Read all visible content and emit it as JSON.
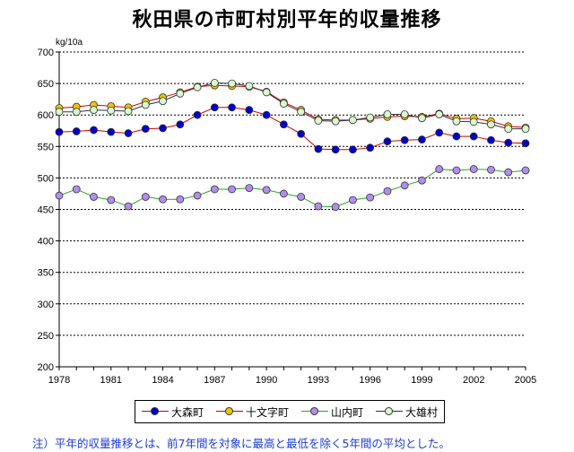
{
  "title": "秋田県の市町村別平年的収量推移",
  "note": "注）平年的収量推移とは、前7年間を対象に最高と最低を除く5年間の平均とした。",
  "chart_data": {
    "type": "line",
    "ylabel": "kg/10a",
    "xlabel": "",
    "ylim": [
      200,
      700
    ],
    "yticks": [
      200,
      250,
      300,
      350,
      400,
      450,
      500,
      550,
      600,
      650,
      700
    ],
    "xlim": [
      1978,
      2005
    ],
    "xticks": [
      1978,
      1981,
      1984,
      1987,
      1990,
      1993,
      1996,
      1999,
      2002,
      2005
    ],
    "grid": true,
    "legend_position": "bottom",
    "x": [
      1978,
      1979,
      1980,
      1981,
      1982,
      1983,
      1984,
      1985,
      1986,
      1987,
      1988,
      1989,
      1990,
      1991,
      1992,
      1993,
      1994,
      1995,
      1996,
      1997,
      1998,
      1999,
      2000,
      2001,
      2002,
      2003,
      2004,
      2005
    ],
    "series": [
      {
        "name": "大森町",
        "color": "#0000cc",
        "line": "#cc0000",
        "values": [
          573,
          574,
          576,
          573,
          571,
          578,
          579,
          585,
          600,
          612,
          612,
          608,
          600,
          585,
          570,
          546,
          545,
          545,
          548,
          558,
          560,
          561,
          572,
          566,
          566,
          560,
          556,
          555
        ]
      },
      {
        "name": "十文字町",
        "color": "#f2c200",
        "line": "#cc0000",
        "values": [
          611,
          613,
          616,
          614,
          612,
          621,
          628,
          636,
          645,
          647,
          646,
          645,
          637,
          620,
          608,
          593,
          592,
          592,
          594,
          597,
          598,
          597,
          602,
          594,
          595,
          590,
          582,
          580
        ]
      },
      {
        "name": "山内町",
        "color": "#b48cf0",
        "line": "#22aa22",
        "values": [
          472,
          482,
          470,
          465,
          455,
          470,
          466,
          466,
          472,
          482,
          482,
          484,
          481,
          475,
          470,
          455,
          454,
          465,
          469,
          479,
          488,
          496,
          514,
          512,
          514,
          513,
          509,
          512
        ]
      },
      {
        "name": "大雄村",
        "color": "#d8f8d0",
        "line": "#333333",
        "values": [
          605,
          605,
          608,
          607,
          606,
          616,
          622,
          634,
          644,
          651,
          650,
          646,
          636,
          618,
          605,
          591,
          590,
          592,
          596,
          601,
          601,
          595,
          601,
          590,
          589,
          585,
          578,
          578
        ]
      }
    ]
  }
}
